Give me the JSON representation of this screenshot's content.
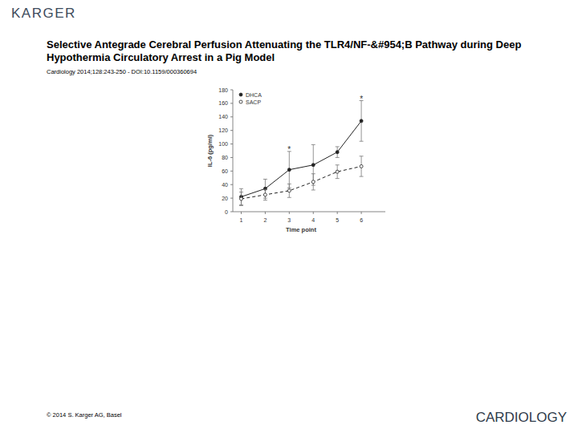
{
  "header": {
    "publisher": "KARGER",
    "title": "Selective Antegrade Cerebral Perfusion Attenuating the TLR4/NF-&#954;B Pathway during Deep Hypothermia Circulatory Arrest in a Pig Model",
    "citation": "Cardiology 2014;128:243-250 - DOI:10.1159/000360694"
  },
  "chart_data": {
    "type": "line",
    "x_label": "Time point",
    "y_label": "IL-6 (pg/ml)",
    "x": [
      1,
      2,
      3,
      4,
      5,
      6
    ],
    "series": [
      {
        "name": "DHCA",
        "color": "#222222",
        "marker": "filled",
        "line_style": "solid",
        "values": [
          22,
          34,
          62,
          69,
          88,
          134
        ],
        "errors": [
          12,
          14,
          27,
          30,
          8,
          30
        ]
      },
      {
        "name": "SACP",
        "color": "#222222",
        "marker": "open",
        "line_style": "dashed",
        "values": [
          19,
          25,
          31,
          44,
          59,
          67
        ],
        "errors": [
          10,
          8,
          10,
          12,
          10,
          15
        ]
      }
    ],
    "annotations": [
      {
        "x": 3,
        "text": "*"
      },
      {
        "x": 6,
        "text": "*"
      }
    ],
    "xlim": [
      0.65,
      7
    ],
    "xticks": [
      1,
      2,
      3,
      4,
      5,
      6
    ],
    "ylim": [
      0,
      180
    ],
    "yticks": [
      0,
      20,
      40,
      60,
      80,
      100,
      120,
      140,
      160,
      180
    ],
    "legend": "upper left",
    "grid": false
  },
  "footer": {
    "copyright": "© 2014 S. Karger AG, Basel",
    "journal": "CARDIOLOGY"
  }
}
